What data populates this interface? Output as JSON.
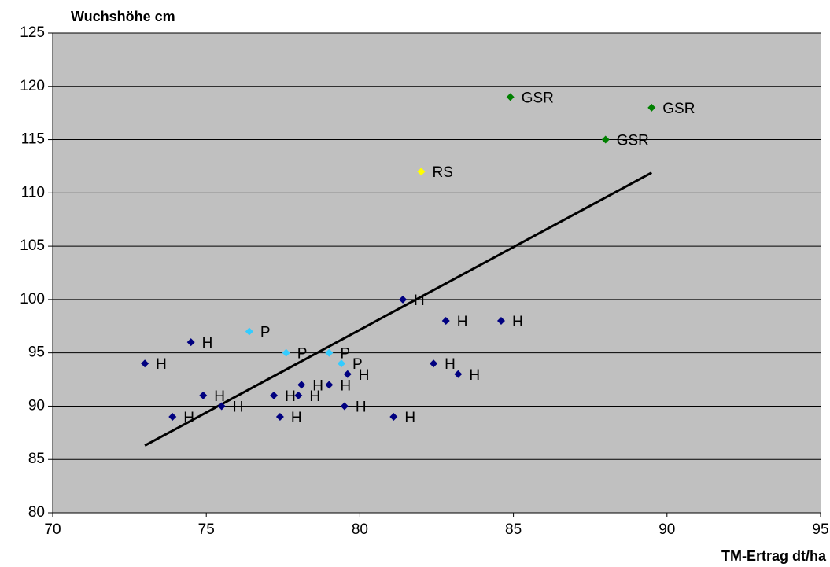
{
  "chart_data": {
    "type": "scatter",
    "y_title": "Wuchshöhe cm",
    "x_title": "TM-Ertrag dt/ha",
    "xlim": [
      70,
      95
    ],
    "xticks": [
      70,
      75,
      80,
      85,
      90,
      95
    ],
    "ylim": [
      80,
      125
    ],
    "yticks": [
      80,
      85,
      90,
      95,
      100,
      105,
      110,
      115,
      120,
      125
    ],
    "grid": true,
    "background": "#c0c0c0",
    "series": [
      {
        "color": "#000080",
        "x": [
          73.0,
          74.5,
          73.9,
          74.9,
          75.5,
          77.2,
          77.4,
          78.1,
          78.0,
          79.0,
          79.6,
          79.5,
          81.1,
          81.4,
          82.4,
          82.8,
          83.2,
          84.6
        ],
        "values": [
          94,
          96,
          89,
          91,
          90,
          91,
          89,
          92,
          91,
          92,
          93,
          90,
          89,
          100,
          94,
          98,
          93,
          98
        ],
        "labels": [
          "H",
          "H",
          "H",
          "H",
          "H",
          "H",
          "H",
          "H",
          "H",
          "H",
          "H",
          "H",
          "H",
          "H",
          "H",
          "H",
          "H",
          "H"
        ]
      },
      {
        "color": "#33ccff",
        "x": [
          76.4,
          77.6,
          79.0,
          79.4
        ],
        "values": [
          97,
          95,
          95,
          94
        ],
        "labels": [
          "P",
          "P",
          "P",
          "P"
        ]
      },
      {
        "color": "#ffff00",
        "x": [
          82.0
        ],
        "values": [
          112
        ],
        "labels": [
          "RS"
        ]
      },
      {
        "color": "#008000",
        "x": [
          84.9,
          89.5,
          88.0
        ],
        "values": [
          119,
          118,
          115
        ],
        "labels": [
          "GSR",
          "GSR",
          "GSR"
        ]
      }
    ],
    "trendline": {
      "color": "#000000",
      "x": [
        73.0,
        89.5
      ],
      "values": [
        86.3,
        111.9
      ]
    }
  }
}
